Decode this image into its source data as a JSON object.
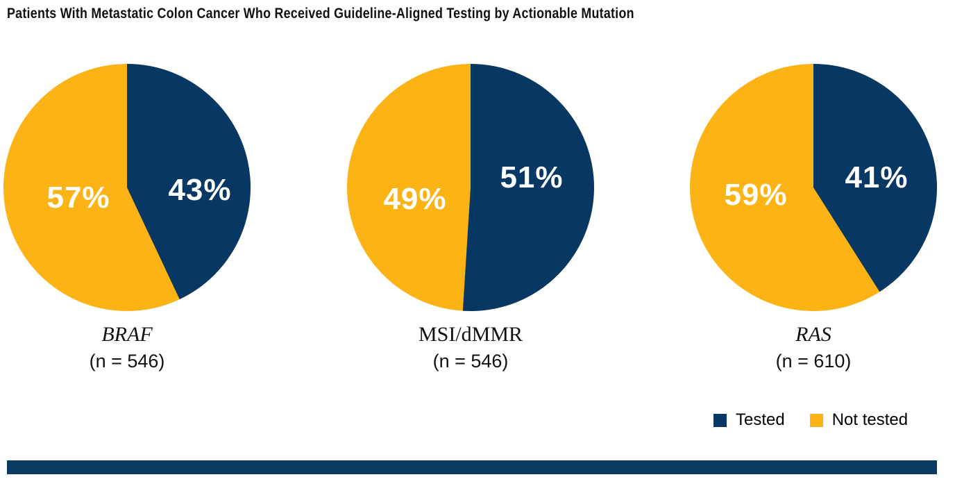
{
  "title": "Patients With Metastatic Colon Cancer Who Received Guideline-Aligned Testing by Actionable Mutation",
  "colors": {
    "tested": "#073763",
    "not_tested": "#FCB316",
    "footer_bar": "#0D3A63"
  },
  "legend": {
    "items": [
      {
        "label": "Tested",
        "color": "#073763"
      },
      {
        "label": "Not tested",
        "color": "#FCB316"
      }
    ]
  },
  "chart_data": {
    "type": "pie",
    "title": "Patients With Metastatic Colon Cancer Who Received Guideline-Aligned Testing by Actionable Mutation",
    "legend_position": "bottom-right",
    "series_labels": [
      "Tested",
      "Not tested"
    ],
    "slice_start": "12-oclock-clockwise-tested-first",
    "pies": [
      {
        "name": "BRAF",
        "name_italic": true,
        "n": 546,
        "n_label": "(n = 546)",
        "tested_pct": 43,
        "tested_label": "43%",
        "not_tested_pct": 57,
        "not_tested_label": "57%"
      },
      {
        "name": "MSI/dMMR",
        "name_italic": false,
        "n": 546,
        "n_label": "(n = 546)",
        "tested_pct": 51,
        "tested_label": "51%",
        "not_tested_pct": 49,
        "not_tested_label": "49%"
      },
      {
        "name": "RAS",
        "name_italic": true,
        "n": 610,
        "n_label": "(n = 610)",
        "tested_pct": 41,
        "tested_label": "41%",
        "not_tested_pct": 59,
        "not_tested_label": "59%"
      }
    ]
  }
}
